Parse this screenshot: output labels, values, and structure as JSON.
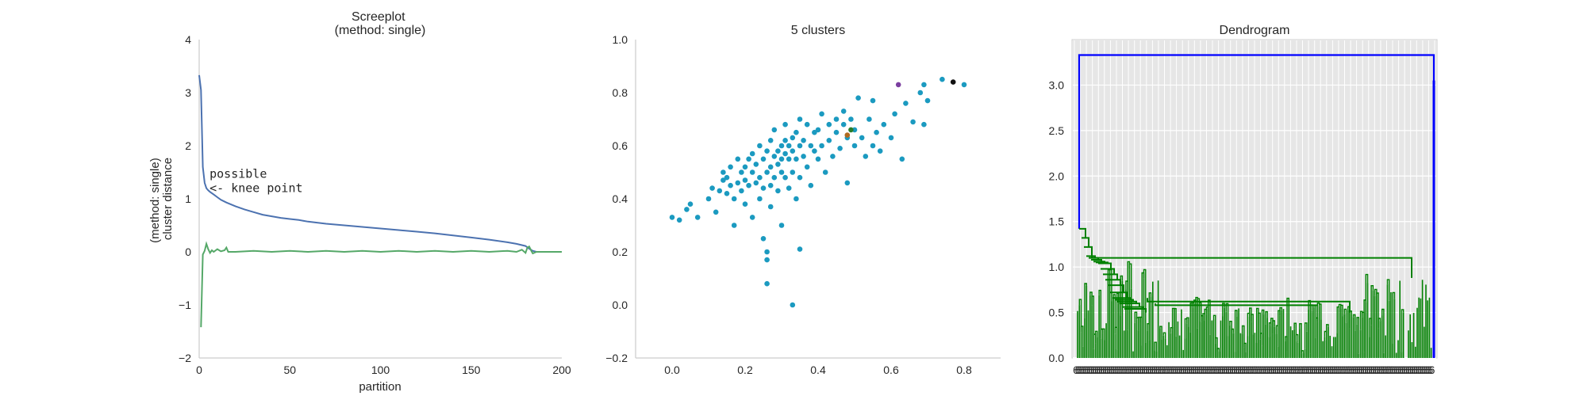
{
  "chart_data": [
    {
      "type": "line",
      "title": "Screeplot\n(method: single)",
      "xlabel": "partition",
      "ylabel": "(method: single)\ncluster distance",
      "xlim": [
        0,
        200
      ],
      "ylim": [
        -2,
        4
      ],
      "xticks": [
        0,
        50,
        100,
        150,
        200
      ],
      "yticks": [
        -2,
        -1,
        0,
        1,
        2,
        3,
        4
      ],
      "ytick_labels": [
        "−2",
        "−1",
        "0",
        "1",
        "2",
        "3",
        "4"
      ],
      "grid": false,
      "annotation": {
        "lines": [
          "possible",
          "<- knee point"
        ],
        "x": 4,
        "y": 1.22
      },
      "series": [
        {
          "color": "#4c72b0",
          "x": [
            0,
            1,
            2,
            3,
            4,
            5,
            6,
            8,
            10,
            12,
            15,
            20,
            25,
            30,
            35,
            40,
            45,
            50,
            55,
            60,
            70,
            80,
            90,
            100,
            110,
            120,
            130,
            140,
            150,
            160,
            170,
            175,
            180,
            182,
            184,
            186,
            190,
            200
          ],
          "y": [
            3.33,
            3.05,
            1.6,
            1.3,
            1.2,
            1.16,
            1.13,
            1.08,
            1.03,
            0.98,
            0.93,
            0.86,
            0.8,
            0.75,
            0.7,
            0.67,
            0.64,
            0.62,
            0.6,
            0.57,
            0.53,
            0.5,
            0.47,
            0.44,
            0.41,
            0.38,
            0.35,
            0.31,
            0.27,
            0.23,
            0.18,
            0.15,
            0.11,
            0.06,
            0.02,
            0.0,
            0.0,
            0.0
          ]
        },
        {
          "color": "#55a868",
          "x": [
            1,
            2,
            3,
            4,
            5,
            6,
            7,
            8,
            10,
            12,
            14,
            15,
            16,
            20,
            30,
            40,
            50,
            60,
            70,
            80,
            90,
            100,
            110,
            120,
            130,
            140,
            150,
            160,
            170,
            175,
            178,
            180,
            181,
            182,
            183,
            184,
            186,
            190,
            200
          ],
          "y": [
            -1.42,
            -0.05,
            0.02,
            0.15,
            0.05,
            -0.02,
            0.03,
            0.0,
            0.05,
            0.01,
            0.03,
            0.08,
            0.0,
            0.0,
            0.02,
            0.0,
            0.02,
            0.0,
            0.02,
            0.0,
            0.02,
            0.0,
            0.02,
            0.0,
            0.02,
            0.0,
            0.02,
            0.0,
            0.02,
            0.0,
            0.04,
            -0.02,
            0.08,
            0.1,
            0.03,
            -0.03,
            0.0,
            0.0,
            0.0
          ]
        }
      ]
    },
    {
      "type": "scatter",
      "title": "5 clusters",
      "xlim": [
        -0.1,
        0.9
      ],
      "ylim": [
        -0.2,
        1.0
      ],
      "xticks": [
        0.0,
        0.2,
        0.4,
        0.6,
        0.8
      ],
      "xtick_labels": [
        "0.0",
        "0.2",
        "0.4",
        "0.6",
        "0.8"
      ],
      "yticks": [
        -0.2,
        0.0,
        0.2,
        0.4,
        0.6,
        0.8,
        1.0
      ],
      "ytick_labels": [
        "−0.2",
        "0.0",
        "0.2",
        "0.4",
        "0.6",
        "0.8",
        "1.0"
      ],
      "grid": false,
      "series": [
        {
          "color": "#1b9ac0",
          "points": [
            [
              0.0,
              0.33
            ],
            [
              0.02,
              0.32
            ],
            [
              0.04,
              0.36
            ],
            [
              0.05,
              0.38
            ],
            [
              0.07,
              0.33
            ],
            [
              0.1,
              0.4
            ],
            [
              0.11,
              0.44
            ],
            [
              0.12,
              0.35
            ],
            [
              0.13,
              0.43
            ],
            [
              0.14,
              0.47
            ],
            [
              0.14,
              0.5
            ],
            [
              0.15,
              0.48
            ],
            [
              0.15,
              0.42
            ],
            [
              0.16,
              0.45
            ],
            [
              0.16,
              0.52
            ],
            [
              0.17,
              0.4
            ],
            [
              0.17,
              0.3
            ],
            [
              0.18,
              0.46
            ],
            [
              0.18,
              0.55
            ],
            [
              0.19,
              0.5
            ],
            [
              0.19,
              0.43
            ],
            [
              0.2,
              0.52
            ],
            [
              0.2,
              0.47
            ],
            [
              0.2,
              0.38
            ],
            [
              0.21,
              0.55
            ],
            [
              0.21,
              0.45
            ],
            [
              0.22,
              0.5
            ],
            [
              0.22,
              0.57
            ],
            [
              0.22,
              0.33
            ],
            [
              0.23,
              0.46
            ],
            [
              0.23,
              0.53
            ],
            [
              0.24,
              0.48
            ],
            [
              0.24,
              0.6
            ],
            [
              0.24,
              0.4
            ],
            [
              0.25,
              0.55
            ],
            [
              0.25,
              0.44
            ],
            [
              0.25,
              0.25
            ],
            [
              0.26,
              0.5
            ],
            [
              0.26,
              0.58
            ],
            [
              0.26,
              0.2
            ],
            [
              0.26,
              0.17
            ],
            [
              0.26,
              0.08
            ],
            [
              0.27,
              0.52
            ],
            [
              0.27,
              0.62
            ],
            [
              0.27,
              0.45
            ],
            [
              0.27,
              0.37
            ],
            [
              0.28,
              0.56
            ],
            [
              0.28,
              0.48
            ],
            [
              0.28,
              0.66
            ],
            [
              0.29,
              0.53
            ],
            [
              0.29,
              0.58
            ],
            [
              0.29,
              0.43
            ],
            [
              0.3,
              0.6
            ],
            [
              0.3,
              0.55
            ],
            [
              0.3,
              0.5
            ],
            [
              0.3,
              0.3
            ],
            [
              0.31,
              0.62
            ],
            [
              0.31,
              0.57
            ],
            [
              0.31,
              0.48
            ],
            [
              0.31,
              0.68
            ],
            [
              0.32,
              0.55
            ],
            [
              0.32,
              0.6
            ],
            [
              0.32,
              0.44
            ],
            [
              0.33,
              0.63
            ],
            [
              0.33,
              0.58
            ],
            [
              0.33,
              0.5
            ],
            [
              0.33,
              0.0
            ],
            [
              0.34,
              0.65
            ],
            [
              0.34,
              0.55
            ],
            [
              0.34,
              0.4
            ],
            [
              0.35,
              0.6
            ],
            [
              0.35,
              0.7
            ],
            [
              0.35,
              0.48
            ],
            [
              0.35,
              0.21
            ],
            [
              0.36,
              0.62
            ],
            [
              0.36,
              0.56
            ],
            [
              0.37,
              0.68
            ],
            [
              0.37,
              0.52
            ],
            [
              0.38,
              0.6
            ],
            [
              0.38,
              0.45
            ],
            [
              0.39,
              0.65
            ],
            [
              0.39,
              0.58
            ],
            [
              0.4,
              0.66
            ],
            [
              0.4,
              0.55
            ],
            [
              0.41,
              0.72
            ],
            [
              0.41,
              0.6
            ],
            [
              0.42,
              0.5
            ],
            [
              0.43,
              0.68
            ],
            [
              0.43,
              0.62
            ],
            [
              0.44,
              0.56
            ],
            [
              0.45,
              0.7
            ],
            [
              0.45,
              0.65
            ],
            [
              0.46,
              0.59
            ],
            [
              0.47,
              0.68
            ],
            [
              0.47,
              0.73
            ],
            [
              0.48,
              0.63
            ],
            [
              0.48,
              0.46
            ],
            [
              0.49,
              0.7
            ],
            [
              0.5,
              0.66
            ],
            [
              0.5,
              0.6
            ],
            [
              0.51,
              0.78
            ],
            [
              0.52,
              0.63
            ],
            [
              0.53,
              0.56
            ],
            [
              0.54,
              0.7
            ],
            [
              0.55,
              0.77
            ],
            [
              0.55,
              0.6
            ],
            [
              0.56,
              0.65
            ],
            [
              0.57,
              0.58
            ],
            [
              0.58,
              0.68
            ],
            [
              0.6,
              0.63
            ],
            [
              0.61,
              0.72
            ],
            [
              0.63,
              0.55
            ],
            [
              0.64,
              0.76
            ],
            [
              0.66,
              0.69
            ],
            [
              0.68,
              0.8
            ],
            [
              0.69,
              0.83
            ],
            [
              0.69,
              0.68
            ],
            [
              0.7,
              0.77
            ],
            [
              0.74,
              0.85
            ],
            [
              0.8,
              0.83
            ]
          ]
        },
        {
          "color": "#7b3fa0",
          "points": [
            [
              0.62,
              0.83
            ]
          ]
        },
        {
          "color": "#111111",
          "points": [
            [
              0.77,
              0.84
            ]
          ]
        },
        {
          "color": "#2a7d2a",
          "points": [
            [
              0.49,
              0.66
            ]
          ]
        },
        {
          "color": "#b06a20",
          "points": [
            [
              0.48,
              0.64
            ]
          ]
        }
      ]
    },
    {
      "type": "dendrogram",
      "title": "Dendrogram",
      "ylim": [
        0.0,
        3.5
      ],
      "yticks": [
        0.0,
        0.5,
        1.0,
        1.5,
        2.0,
        2.5,
        3.0
      ],
      "ytick_labels": [
        "0.0",
        "0.5",
        "1.0",
        "1.5",
        "2.0",
        "2.5",
        "3.0"
      ],
      "grid": true,
      "n_leaves": 183,
      "root_height": 3.33,
      "colors": {
        "cluster": "#008000",
        "root": "#0000ff"
      },
      "leaf_label_text": "6",
      "top_merge_heights": [
        1.42,
        1.32,
        1.22,
        1.12,
        1.1,
        1.08,
        1.06,
        1.05,
        1.04,
        0.98,
        0.92,
        0.86,
        0.8,
        0.72,
        0.66,
        0.64,
        0.62,
        0.6,
        0.56,
        0.54,
        0.5
      ]
    }
  ]
}
